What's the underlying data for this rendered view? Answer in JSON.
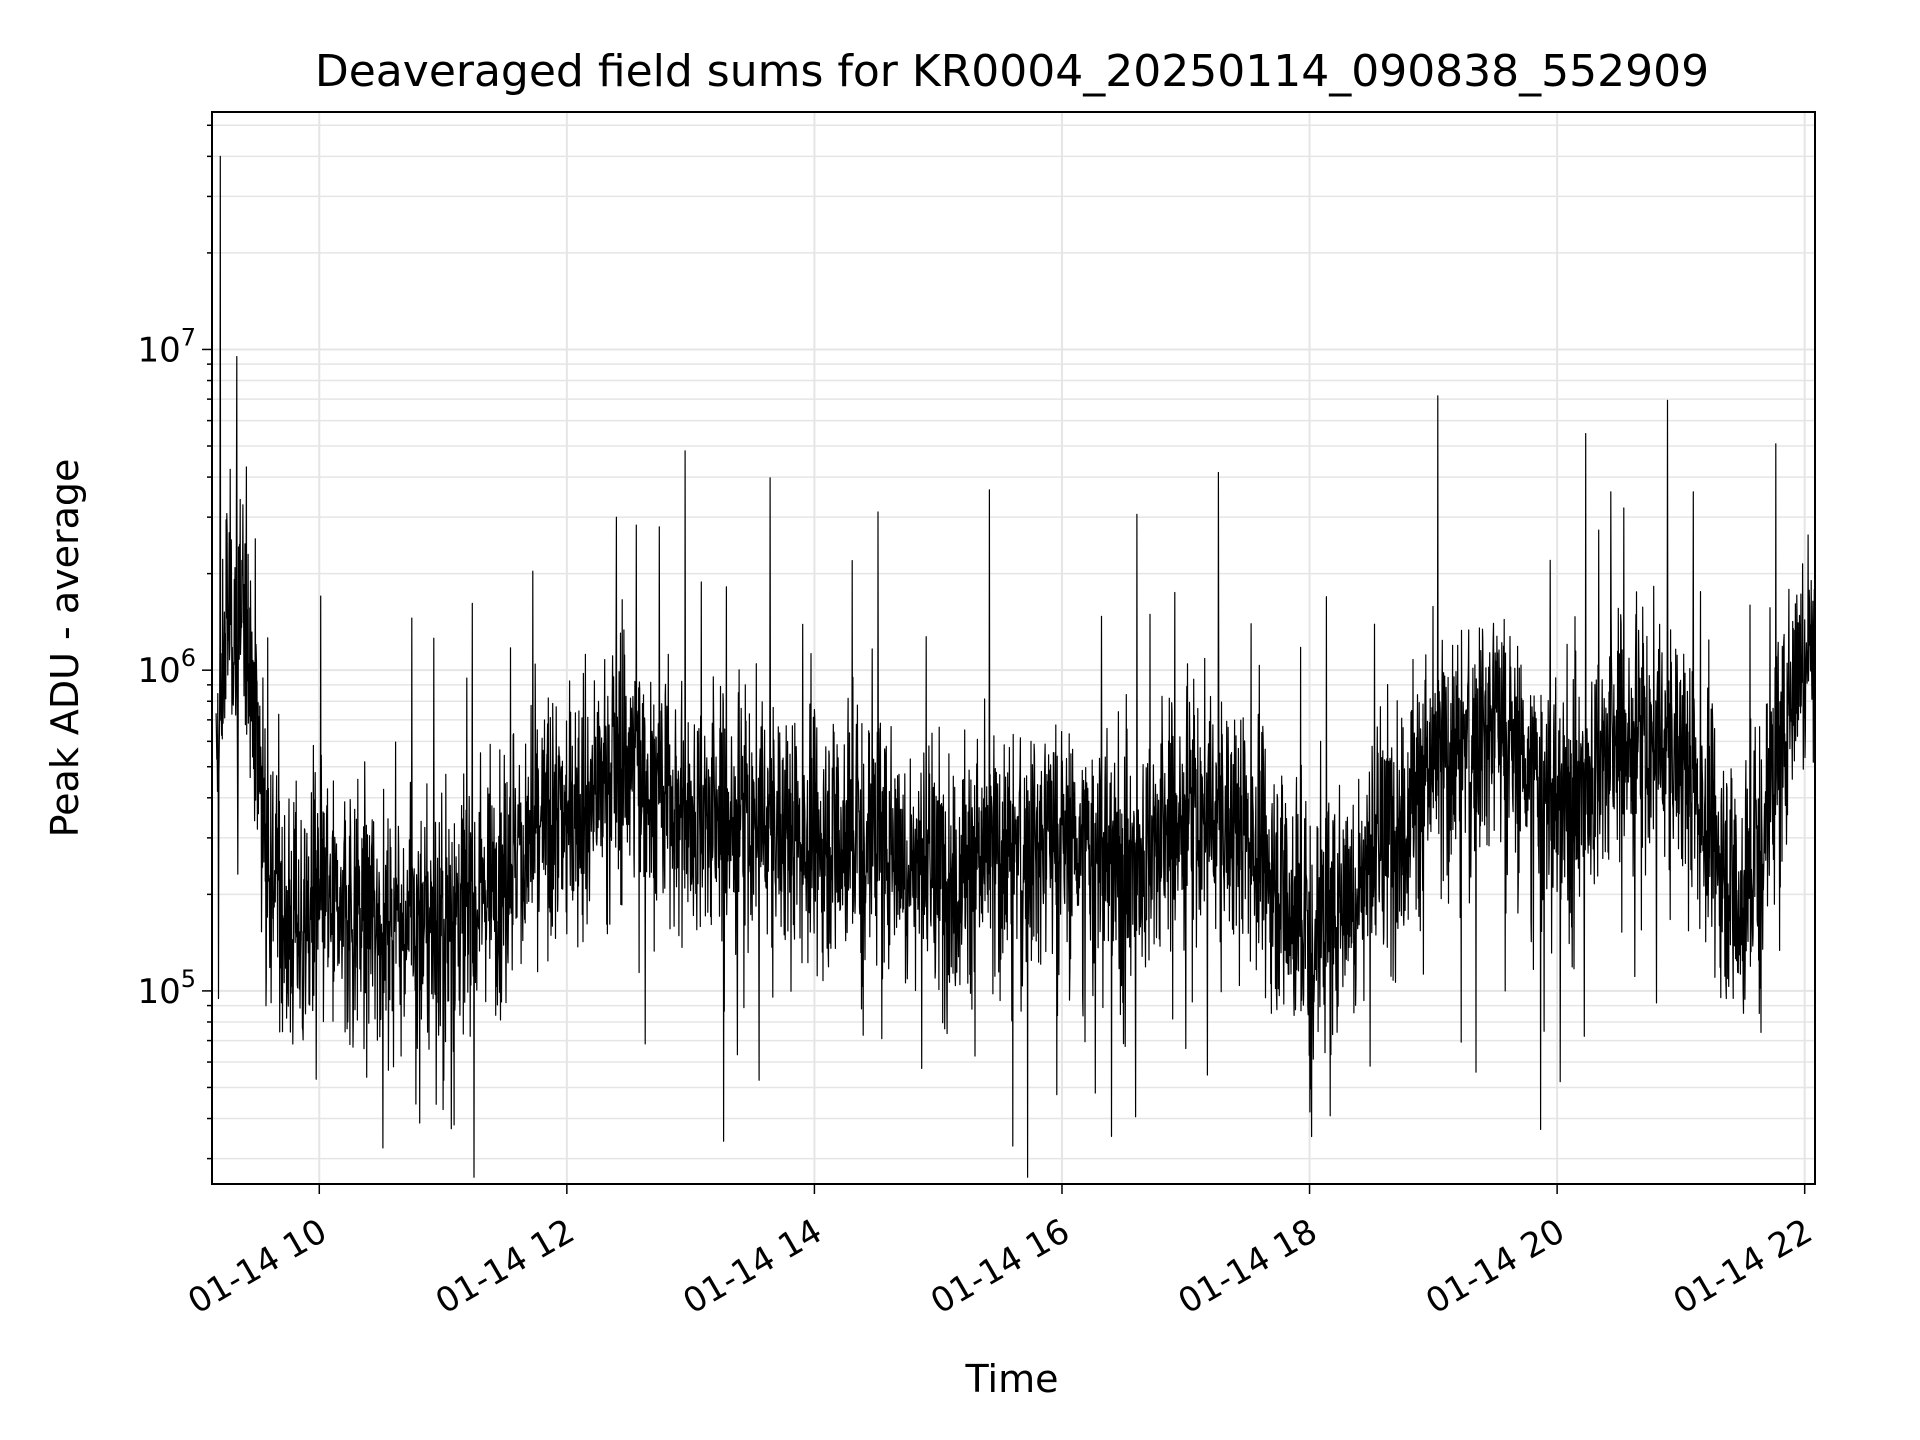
{
  "chart_data": {
    "type": "line",
    "title": "Deaveraged field sums for KR0004_20250114_090838_552909",
    "xlabel": "Time",
    "ylabel": "Peak ADU - average",
    "y_scale": "log",
    "x_range": [
      "2025-01-14 09:08",
      "2025-01-14 22:05"
    ],
    "ylim": [
      25000,
      55000000
    ],
    "grid": true,
    "line_color": "#000000",
    "grid_color": "#e5e5e5",
    "x_ticks": [
      {
        "time": "2025-01-14 10:00",
        "label": "01-14 10"
      },
      {
        "time": "2025-01-14 12:00",
        "label": "01-14 12"
      },
      {
        "time": "2025-01-14 14:00",
        "label": "01-14 14"
      },
      {
        "time": "2025-01-14 16:00",
        "label": "01-14 16"
      },
      {
        "time": "2025-01-14 18:00",
        "label": "01-14 18"
      },
      {
        "time": "2025-01-14 20:00",
        "label": "01-14 20"
      },
      {
        "time": "2025-01-14 22:00",
        "label": "01-14 22"
      }
    ],
    "y_ticks": [
      {
        "value": 100000,
        "base": "10",
        "exp": "5"
      },
      {
        "value": 1000000,
        "base": "10",
        "exp": "6"
      },
      {
        "value": 10000000,
        "base": "10",
        "exp": "7"
      }
    ],
    "series": [
      {
        "time_resolution_minutes": 5,
        "start": "2025-01-14 09:10",
        "end": "2025-01-14 22:05",
        "points": [
          [
            "2025-01-14 09:10",
            400000
          ],
          [
            "2025-01-14 09:15",
            1500000
          ],
          [
            "2025-01-14 09:20",
            1400000
          ],
          [
            "2025-01-14 09:25",
            1600000
          ],
          [
            "2025-01-14 09:30",
            600000
          ],
          [
            "2025-01-14 09:35",
            300000
          ],
          [
            "2025-01-14 09:45",
            150000
          ],
          [
            "2025-01-14 10:00",
            180000
          ],
          [
            "2025-01-14 10:30",
            170000
          ],
          [
            "2025-01-14 11:00",
            160000
          ],
          [
            "2025-01-14 11:30",
            250000
          ],
          [
            "2025-01-14 12:00",
            350000
          ],
          [
            "2025-01-14 12:30",
            550000
          ],
          [
            "2025-01-14 13:00",
            350000
          ],
          [
            "2025-01-14 13:30",
            330000
          ],
          [
            "2025-01-14 14:00",
            300000
          ],
          [
            "2025-01-14 14:30",
            320000
          ],
          [
            "2025-01-14 15:00",
            220000
          ],
          [
            "2025-01-14 15:30",
            270000
          ],
          [
            "2025-01-14 16:00",
            300000
          ],
          [
            "2025-01-14 16:30",
            230000
          ],
          [
            "2025-01-14 17:00",
            350000
          ],
          [
            "2025-01-14 17:30",
            320000
          ],
          [
            "2025-01-14 18:00",
            150000
          ],
          [
            "2025-01-14 18:30",
            250000
          ],
          [
            "2025-01-14 19:00",
            500000
          ],
          [
            "2025-01-14 19:30",
            700000
          ],
          [
            "2025-01-14 20:00",
            350000
          ],
          [
            "2025-01-14 20:30",
            600000
          ],
          [
            "2025-01-14 21:00",
            550000
          ],
          [
            "2025-01-14 21:30",
            180000
          ],
          [
            "2025-01-14 22:00",
            1300000
          ],
          [
            "2025-01-14 22:05",
            1300000
          ]
        ],
        "spikes": [
          [
            "2025-01-14 09:12",
            40000000
          ],
          [
            "2025-01-14 09:20",
            9500000
          ],
          [
            "2025-01-14 12:24",
            3000000
          ],
          [
            "2025-01-14 13:16",
            34000
          ],
          [
            "2025-01-14 19:52",
            37000
          ],
          [
            "2025-01-14 20:26",
            3600000
          ],
          [
            "2025-01-14 21:06",
            3600000
          ]
        ]
      }
    ]
  }
}
